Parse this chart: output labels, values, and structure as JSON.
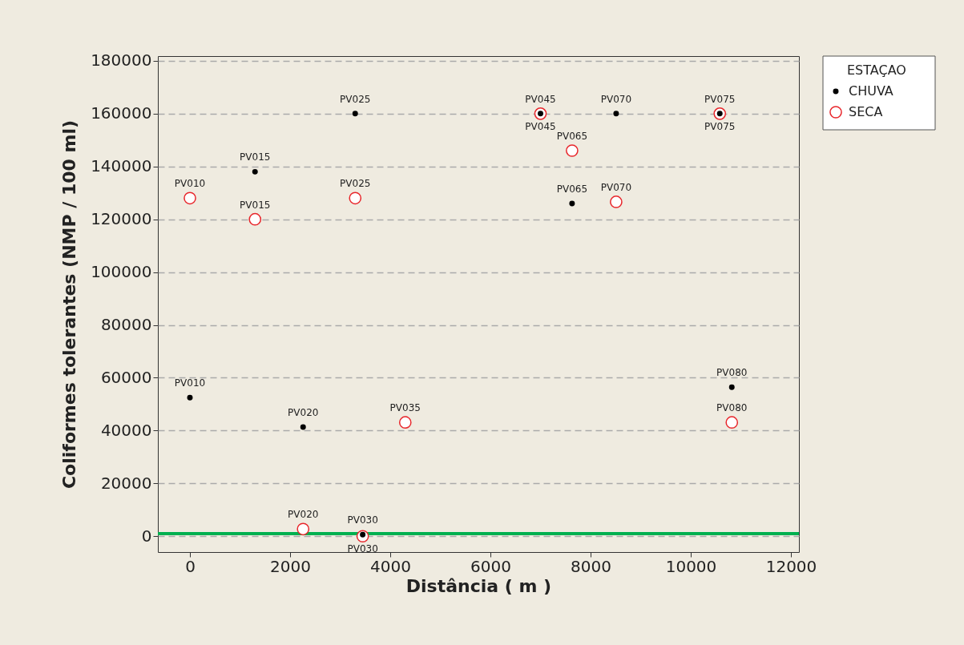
{
  "chart_data": {
    "type": "scatter",
    "xlabel": "Distância ( m )",
    "ylabel": "Coliformes tolerantes (NMP / 100 ml)",
    "legend_title": "ESTAÇAO",
    "legend": "top right",
    "grid": "y",
    "marker": "circle",
    "xlim": [
      -640,
      12160
    ],
    "xticks": [
      0,
      2000,
      4000,
      6000,
      8000,
      10000,
      12000
    ],
    "ylim": [
      -6000,
      181800
    ],
    "yticks": [
      0,
      20000,
      40000,
      60000,
      80000,
      100000,
      120000,
      140000,
      160000,
      180000
    ],
    "series": [
      {
        "name": "CHUVA",
        "color": "#000000",
        "x": [
          0,
          1300,
          2260,
          3300,
          3450,
          7000,
          7630,
          8510,
          10580,
          10820
        ],
        "values": [
          52500,
          138000,
          41300,
          160000,
          600,
          160000,
          126000,
          160000,
          160000,
          56400
        ]
      },
      {
        "name": "SECA",
        "color": "#e8262b",
        "x": [
          0,
          1300,
          2260,
          3300,
          3450,
          4300,
          7000,
          7630,
          8510,
          10580,
          10820
        ],
        "values": [
          128000,
          120000,
          2700,
          128000,
          0,
          43100,
          160000,
          146000,
          126600,
          160000,
          43100
        ]
      }
    ],
    "ref_lines": [
      {
        "axis": "y",
        "value": 1000,
        "color": "#00b050"
      }
    ],
    "annotations": [
      {
        "text": "PV010",
        "x": 0,
        "y": 52500
      },
      {
        "text": "PV015",
        "x": 1300,
        "y": 138000
      },
      {
        "text": "PV020",
        "x": 2260,
        "y": 41300
      },
      {
        "text": "PV025",
        "x": 3300,
        "y": 160000
      },
      {
        "text": "PV030",
        "x": 3450,
        "y": 600
      },
      {
        "text": "PV045",
        "x": 7000,
        "y": 160000
      },
      {
        "text": "PV065",
        "x": 7630,
        "y": 126000
      },
      {
        "text": "PV070",
        "x": 8510,
        "y": 160000
      },
      {
        "text": "PV075",
        "x": 10580,
        "y": 160000
      },
      {
        "text": "PV080",
        "x": 10820,
        "y": 56400
      },
      {
        "text": "PV010",
        "x": 0,
        "y": 128000
      },
      {
        "text": "PV015",
        "x": 1300,
        "y": 120000
      },
      {
        "text": "PV020",
        "x": 2260,
        "y": 2700
      },
      {
        "text": "PV025",
        "x": 3300,
        "y": 128000
      },
      {
        "text": "PV030",
        "x": 3450,
        "y": 0
      },
      {
        "text": "PV035",
        "x": 4300,
        "y": 43100
      },
      {
        "text": "PV045",
        "x": 7000,
        "y": 160000
      },
      {
        "text": "PV065",
        "x": 7630,
        "y": 146000
      },
      {
        "text": "PV070",
        "x": 8510,
        "y": 126600
      },
      {
        "text": "PV075",
        "x": 10580,
        "y": 160000
      },
      {
        "text": "PV080",
        "x": 10820,
        "y": 43100
      }
    ]
  }
}
